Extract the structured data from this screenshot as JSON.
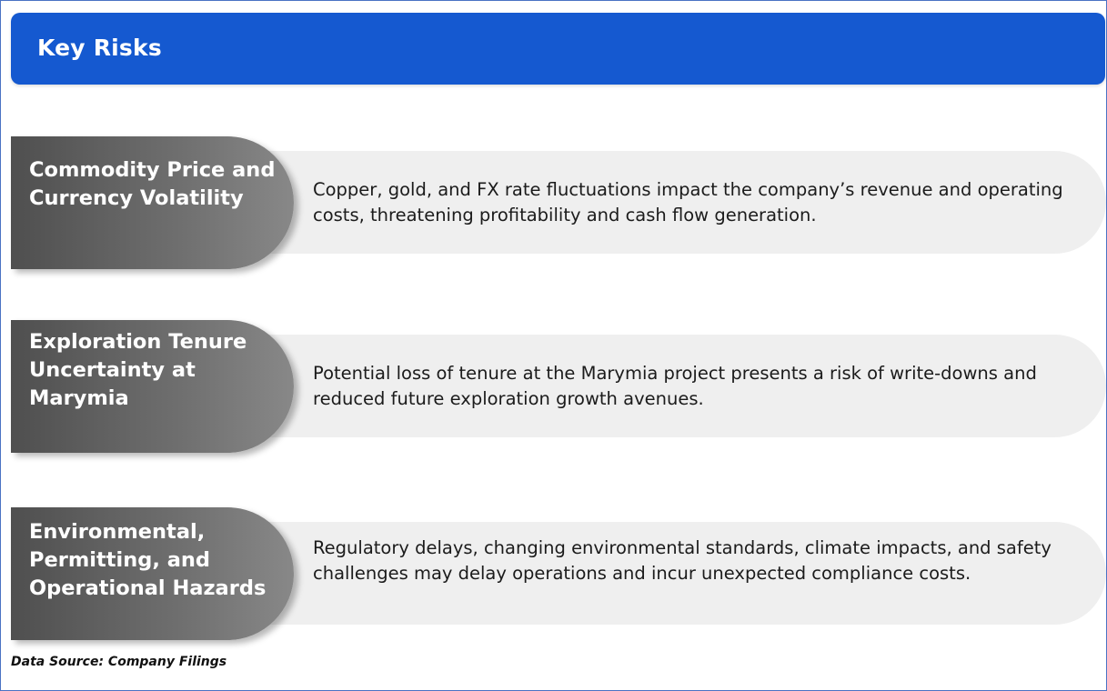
{
  "header": {
    "title": "Key Risks"
  },
  "risks": [
    {
      "title": "Commodity Price and Currency Volatility",
      "description": "Copper, gold, and FX rate fluctuations impact the company’s revenue and operating costs, threatening profitability and cash flow generation."
    },
    {
      "title": "Exploration Tenure Uncertainty at Marymia",
      "description": "Potential loss of tenure at the Marymia project presents a risk of write-downs and reduced future exploration growth avenues."
    },
    {
      "title": "Environmental, Permitting, and Operational Hazards",
      "description": "Regulatory delays, changing environmental standards, climate impacts, and safety challenges may delay operations and incur unexpected compliance costs."
    }
  ],
  "footer": {
    "source": "Data Source: Company Filings"
  }
}
